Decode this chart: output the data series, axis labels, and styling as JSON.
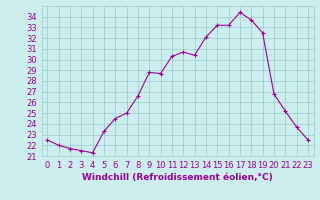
{
  "x": [
    0,
    1,
    2,
    3,
    4,
    5,
    6,
    7,
    8,
    9,
    10,
    11,
    12,
    13,
    14,
    15,
    16,
    17,
    18,
    19,
    20,
    21,
    22,
    23
  ],
  "y": [
    22.5,
    22.0,
    21.7,
    21.5,
    21.3,
    23.3,
    24.5,
    25.0,
    26.6,
    28.8,
    28.7,
    30.3,
    30.7,
    30.4,
    32.1,
    33.2,
    33.2,
    34.4,
    33.7,
    32.5,
    26.8,
    25.2,
    23.7,
    22.5
  ],
  "line_color": "#990099",
  "marker": "+",
  "marker_size": 3,
  "marker_linewidth": 0.8,
  "background_color": "#cceeee",
  "grid_color": "#99cccc",
  "xlabel": "Windchill (Refroidissement éolien,°C)",
  "xlabel_fontsize": 6.5,
  "tick_fontsize": 6,
  "ylim": [
    21,
    35
  ],
  "yticks": [
    21,
    22,
    23,
    24,
    25,
    26,
    27,
    28,
    29,
    30,
    31,
    32,
    33,
    34
  ],
  "xlim": [
    -0.5,
    23.5
  ],
  "xticks": [
    0,
    1,
    2,
    3,
    4,
    5,
    6,
    7,
    8,
    9,
    10,
    11,
    12,
    13,
    14,
    15,
    16,
    17,
    18,
    19,
    20,
    21,
    22,
    23
  ],
  "linewidth": 0.8
}
